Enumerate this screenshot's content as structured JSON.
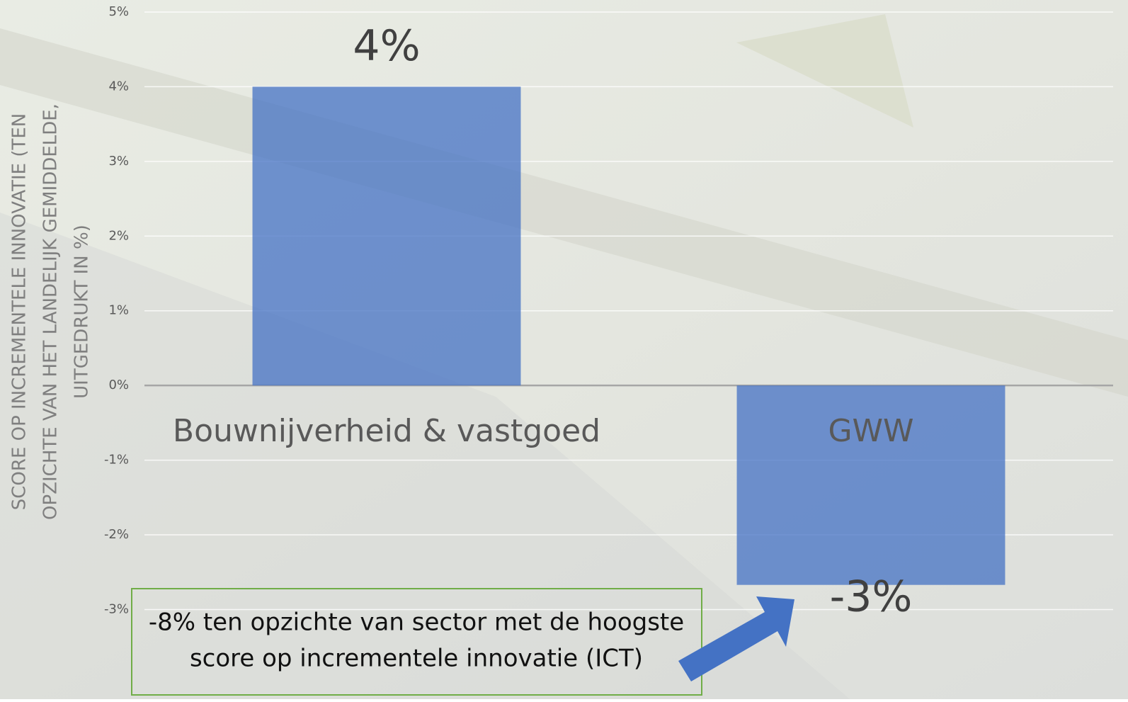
{
  "chart_data": {
    "type": "bar",
    "y_label": [
      "SCORE OP INCREMENTELE INNOVATIE (TEN",
      "OPZICHTE VAN HET LANDELIJK GEMIDDELDE,",
      "UITGEDRUKT IN %)"
    ],
    "categories": [
      "Bouwnijverheid & vastgoed",
      "GWW"
    ],
    "values": [
      4,
      -2.67
    ],
    "value_labels": [
      "4%",
      "-3%"
    ],
    "color": "#4472c4",
    "ylim": [
      -4.2,
      5
    ],
    "yticks": [
      {
        "value": 5,
        "label": "5%"
      },
      {
        "value": 4,
        "label": "4%"
      },
      {
        "value": 3,
        "label": "3%"
      },
      {
        "value": 2,
        "label": "2%"
      },
      {
        "value": 1,
        "label": "1%"
      },
      {
        "value": 0,
        "label": "0%"
      },
      {
        "value": -1,
        "label": "-1%"
      },
      {
        "value": -2,
        "label": "-2%"
      },
      {
        "value": -3,
        "label": "-3%"
      }
    ],
    "grid": true,
    "annotation": [
      "-8% ten opzichte van sector met de hoogste",
      "score op incrementele innovatie (ICT)"
    ]
  }
}
